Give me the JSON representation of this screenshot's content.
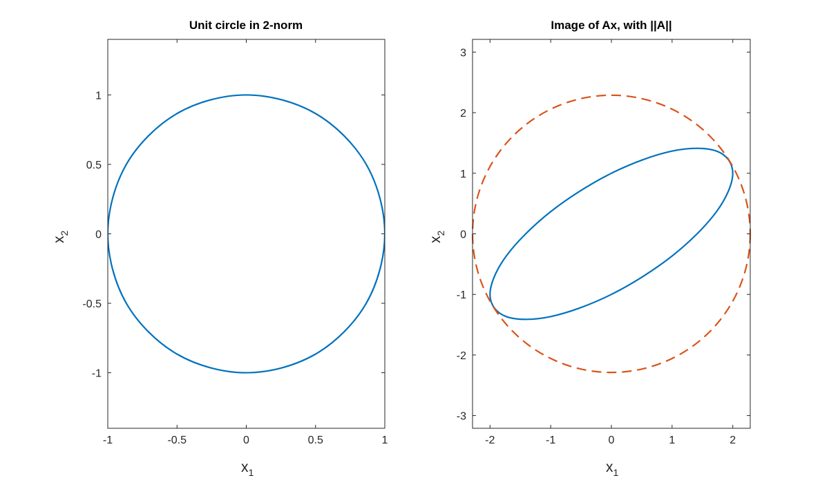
{
  "chart_data": [
    {
      "type": "line",
      "title": "Unit circle in 2-norm",
      "xlabel": "x",
      "xlabel_sub": "1",
      "ylabel": "x",
      "ylabel_sub": "2",
      "xlim": [
        -1,
        1
      ],
      "ylim": [
        -1.4,
        1.4
      ],
      "xticks": [
        "-1",
        "-0.5",
        "0",
        "0.5",
        "1"
      ],
      "yticks": [
        "-1",
        "-0.5",
        "0",
        "0.5",
        "1"
      ],
      "grid": false,
      "series": [
        {
          "color": "#0072BD",
          "style": "solid",
          "closed": true,
          "points": [
            [
              1,
              0
            ],
            [
              0.866,
              0.5
            ],
            [
              0.5,
              0.866
            ],
            [
              0,
              1
            ],
            [
              -0.5,
              0.866
            ],
            [
              -0.866,
              0.5
            ],
            [
              -1,
              0
            ],
            [
              -0.866,
              -0.5
            ],
            [
              -0.5,
              -0.866
            ],
            [
              0,
              -1
            ],
            [
              0.5,
              -0.866
            ],
            [
              0.866,
              -0.5
            ]
          ]
        }
      ]
    },
    {
      "type": "line",
      "title": "Image of Ax, with ||A||",
      "xlabel": "x",
      "xlabel_sub": "1",
      "ylabel": "x",
      "ylabel_sub": "2",
      "xlim": [
        -2.288,
        2.288
      ],
      "ylim": [
        -3.21,
        3.21
      ],
      "xticks": [
        "-2",
        "-1",
        "0",
        "1",
        "2"
      ],
      "yticks": [
        "-3",
        "-2",
        "-1",
        "0",
        "1",
        "2",
        "3"
      ],
      "grid": false,
      "series": [
        {
          "color": "#0072BD",
          "style": "solid",
          "closed": true,
          "points": [
            [
              2,
              1
            ],
            [
              1.732,
              1.366
            ],
            [
              1,
              1.366
            ],
            [
              0,
              1
            ],
            [
              -1,
              0.366
            ],
            [
              -1.732,
              -0.366
            ],
            [
              -2,
              -1
            ],
            [
              -1.732,
              -1.366
            ],
            [
              -1,
              -1.366
            ],
            [
              0,
              -1
            ],
            [
              1,
              -0.366
            ],
            [
              1.732,
              0.366
            ]
          ]
        },
        {
          "color": "#D95319",
          "style": "dashed",
          "circle_radius": 2.288
        }
      ]
    }
  ]
}
